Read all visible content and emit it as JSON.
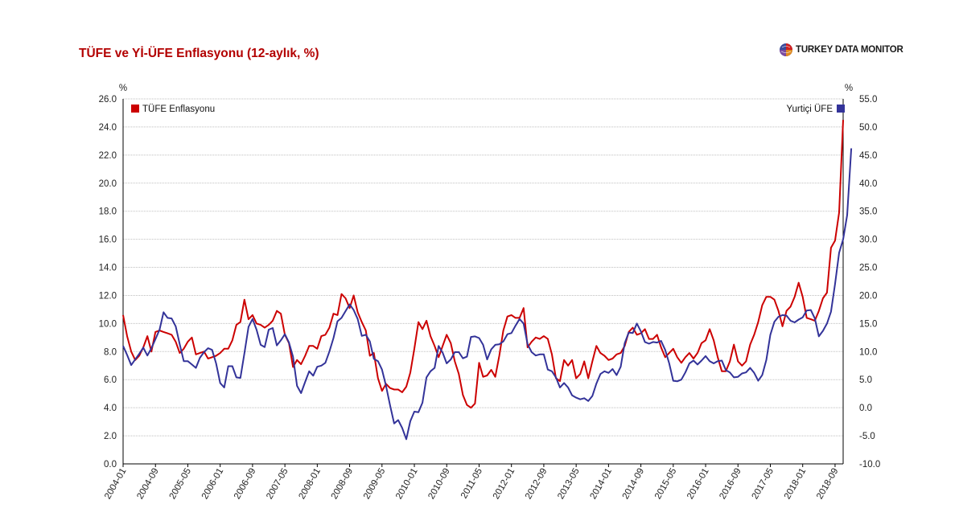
{
  "title": "TÜFE ve Yİ-ÜFE Enflasyonu (12-aylık, %)",
  "brand": "TURKEY DATA MONITOR",
  "colors": {
    "tufe": "#cc0000",
    "ufe": "#333399",
    "grid": "#bfbfbf",
    "title": "#b30000"
  },
  "chart_data": {
    "type": "line",
    "left_axis_unit": "%",
    "right_axis_unit": "%",
    "ylim_left": [
      0,
      26
    ],
    "ylim_right": [
      -10,
      55
    ],
    "left_ticks": [
      "0.0",
      "2.0",
      "4.0",
      "6.0",
      "8.0",
      "10.0",
      "12.0",
      "14.0",
      "16.0",
      "18.0",
      "20.0",
      "22.0",
      "24.0",
      "26.0"
    ],
    "right_ticks": [
      "-10.0",
      "-5.0",
      "0.0",
      "5.0",
      "10.0",
      "15.0",
      "20.0",
      "25.0",
      "30.0",
      "35.0",
      "40.0",
      "45.0",
      "50.0",
      "55.0"
    ],
    "x_start": "2004-01",
    "x_tick_labels": [
      "2004-01",
      "2004-09",
      "2005-05",
      "2006-01",
      "2006-09",
      "2007-05",
      "2008-01",
      "2008-09",
      "2009-05",
      "2010-01",
      "2010-09",
      "2011-05",
      "2012-01",
      "2012-09",
      "2013-05",
      "2014-01",
      "2014-09",
      "2015-05",
      "2016-01",
      "2016-09",
      "2017-05",
      "2018-01",
      "2018-09"
    ],
    "grid": true,
    "series": [
      {
        "name": "TÜFE Enflasyonu",
        "axis": "left",
        "color": "#cc0000",
        "legend": "top-left",
        "values": [
          10.6,
          9.1,
          8.0,
          7.4,
          7.7,
          8.3,
          9.1,
          8.0,
          9.4,
          9.5,
          9.4,
          9.3,
          9.2,
          8.7,
          7.9,
          8.2,
          8.7,
          9.0,
          7.8,
          7.9,
          8.0,
          7.5,
          7.6,
          7.7,
          7.9,
          8.2,
          8.2,
          8.8,
          9.9,
          10.1,
          11.7,
          10.3,
          10.6,
          10.0,
          9.9,
          9.7,
          9.9,
          10.2,
          10.9,
          10.7,
          9.2,
          8.6,
          6.9,
          7.4,
          7.1,
          7.7,
          8.4,
          8.4,
          8.2,
          9.1,
          9.2,
          9.7,
          10.7,
          10.6,
          12.1,
          11.8,
          11.1,
          12.0,
          10.8,
          10.1,
          9.5,
          7.7,
          7.9,
          6.1,
          5.2,
          5.7,
          5.4,
          5.3,
          5.3,
          5.1,
          5.5,
          6.5,
          8.2,
          10.1,
          9.6,
          10.2,
          9.1,
          8.4,
          7.6,
          8.4,
          9.2,
          8.6,
          7.3,
          6.4,
          4.9,
          4.2,
          4.0,
          4.3,
          7.2,
          6.2,
          6.3,
          6.7,
          6.2,
          7.7,
          9.5,
          10.5,
          10.6,
          10.4,
          10.4,
          11.1,
          8.3,
          8.7,
          9.0,
          8.9,
          9.1,
          8.9,
          7.8,
          6.1,
          5.9,
          7.4,
          7.0,
          7.4,
          6.1,
          6.4,
          7.3,
          6.1,
          7.3,
          8.4,
          7.9,
          7.7,
          7.4,
          7.5,
          7.8,
          7.9,
          8.4,
          9.4,
          9.7,
          9.2,
          9.3,
          9.6,
          8.9,
          8.9,
          9.2,
          8.3,
          7.6,
          7.9,
          8.2,
          7.6,
          7.2,
          7.6,
          7.9,
          7.5,
          7.9,
          8.6,
          8.8,
          9.6,
          8.8,
          7.6,
          6.6,
          6.6,
          7.3,
          8.5,
          7.3,
          7.0,
          7.3,
          8.5,
          9.2,
          10.1,
          11.3,
          11.9,
          11.9,
          11.7,
          10.9,
          9.8,
          10.9,
          11.2,
          11.9,
          12.9,
          11.9,
          10.4,
          10.3,
          10.2,
          10.9,
          11.8,
          12.2,
          15.4,
          15.9,
          17.9,
          24.5
        ]
      },
      {
        "name": "Yurtiçi ÜFE",
        "axis": "right",
        "color": "#333399",
        "legend": "top-right",
        "values": [
          11.0,
          9.4,
          7.6,
          8.6,
          9.6,
          10.7,
          9.3,
          10.6,
          12.2,
          13.9,
          17.0,
          16.0,
          15.9,
          14.5,
          11.3,
          8.3,
          8.3,
          7.7,
          7.1,
          8.9,
          9.9,
          10.6,
          10.3,
          7.9,
          4.4,
          3.6,
          7.4,
          7.4,
          5.4,
          5.3,
          9.7,
          14.4,
          15.8,
          13.9,
          11.2,
          10.8,
          13.9,
          14.2,
          11.1,
          12.0,
          13.1,
          11.6,
          9.1,
          3.9,
          2.6,
          4.6,
          6.5,
          5.7,
          7.3,
          7.5,
          8.0,
          10.0,
          12.4,
          15.4,
          16.0,
          17.2,
          18.4,
          17.4,
          15.8,
          12.8,
          13.0,
          11.8,
          8.7,
          8.3,
          6.8,
          3.9,
          0.4,
          -2.8,
          -2.2,
          -3.6,
          -5.6,
          -2.4,
          -0.7,
          -0.8,
          0.9,
          5.4,
          6.5,
          7.1,
          11.0,
          9.8,
          7.9,
          8.6,
          9.9,
          9.9,
          8.8,
          9.1,
          12.6,
          12.7,
          12.4,
          11.2,
          8.6,
          10.4,
          11.2,
          11.3,
          11.8,
          13.1,
          13.3,
          14.6,
          15.8,
          15.0,
          11.3,
          9.9,
          9.3,
          9.5,
          9.5,
          6.8,
          6.5,
          5.4,
          3.6,
          4.4,
          3.6,
          2.2,
          1.8,
          1.5,
          1.7,
          1.2,
          2.1,
          4.3,
          6.0,
          6.5,
          6.2,
          6.9,
          5.8,
          7.3,
          11.5,
          13.4,
          13.3,
          15.0,
          13.6,
          11.7,
          11.4,
          11.7,
          11.6,
          11.9,
          10.3,
          7.9,
          4.8,
          4.7,
          5.0,
          6.3,
          7.9,
          8.4,
          7.7,
          8.4,
          9.2,
          8.3,
          7.9,
          8.3,
          8.4,
          6.7,
          6.3,
          5.4,
          5.5,
          6.1,
          6.3,
          7.1,
          6.2,
          4.8,
          5.8,
          8.5,
          13.0,
          15.3,
          16.2,
          16.5,
          16.4,
          15.5,
          15.2,
          15.7,
          16.1,
          17.3,
          17.4,
          15.9,
          12.7,
          13.7,
          15.0,
          17.1,
          22.0,
          27.6,
          30.0,
          34.3,
          46.2
        ]
      }
    ]
  }
}
